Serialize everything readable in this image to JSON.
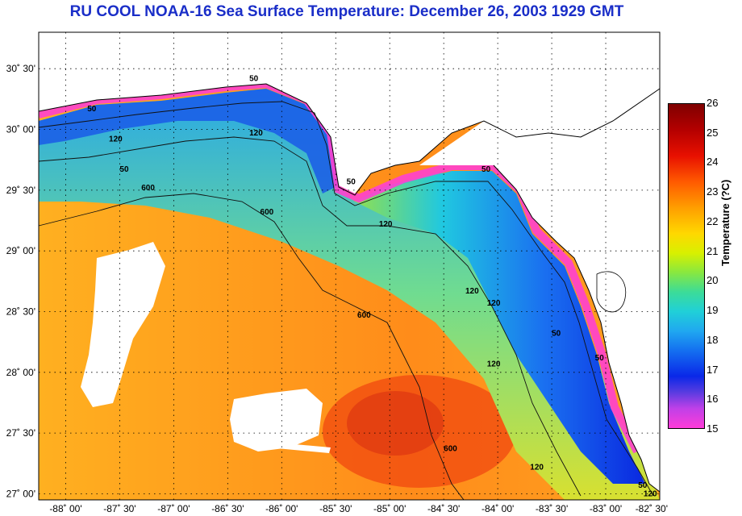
{
  "title": "RU COOL  NOAA-16  Sea Surface Temperature:  December 26, 2003 1929 GMT",
  "map": {
    "lon_range": [
      -88.25,
      -82.5
    ],
    "lat_range": [
      26.95,
      30.8
    ],
    "lat_ticks": [
      {
        "value": 30.5,
        "label": "30˚ 30'"
      },
      {
        "value": 30.0,
        "label": "30˚ 00'"
      },
      {
        "value": 29.5,
        "label": "29˚ 30'"
      },
      {
        "value": 29.0,
        "label": "29˚ 00'"
      },
      {
        "value": 28.5,
        "label": "28˚ 30'"
      },
      {
        "value": 28.0,
        "label": "28˚ 00'"
      },
      {
        "value": 27.5,
        "label": "27˚ 30'"
      },
      {
        "value": 27.0,
        "label": "27˚ 00'"
      }
    ],
    "lon_ticks": [
      {
        "value": -88.0,
        "label": "-88˚ 00'"
      },
      {
        "value": -87.5,
        "label": "-87˚ 30'"
      },
      {
        "value": -87.0,
        "label": "-87˚ 00'"
      },
      {
        "value": -86.5,
        "label": "-86˚ 30'"
      },
      {
        "value": -86.0,
        "label": "-86˚ 00'"
      },
      {
        "value": -85.5,
        "label": "-85˚ 30'"
      },
      {
        "value": -85.0,
        "label": "-85˚ 00'"
      },
      {
        "value": -84.5,
        "label": "-84˚ 30'"
      },
      {
        "value": -84.0,
        "label": "-84˚ 00'"
      },
      {
        "value": -83.5,
        "label": "-83˚ 30'"
      },
      {
        "value": -83.0,
        "label": "-83˚ 00'"
      },
      {
        "value": -82.5,
        "label": "-82˚ 30'"
      }
    ],
    "contour_labels": [
      {
        "text": "50",
        "lon": -87.8,
        "lat": 30.15
      },
      {
        "text": "120",
        "lon": -87.6,
        "lat": 29.9
      },
      {
        "text": "50",
        "lon": -87.5,
        "lat": 29.65
      },
      {
        "text": "600",
        "lon": -87.3,
        "lat": 29.5
      },
      {
        "text": "50",
        "lon": -86.3,
        "lat": 30.4
      },
      {
        "text": "120",
        "lon": -86.3,
        "lat": 29.95
      },
      {
        "text": "600",
        "lon": -86.2,
        "lat": 29.3
      },
      {
        "text": "50",
        "lon": -85.4,
        "lat": 29.55
      },
      {
        "text": "120",
        "lon": -85.1,
        "lat": 29.2
      },
      {
        "text": "600",
        "lon": -85.3,
        "lat": 28.45
      },
      {
        "text": "50",
        "lon": -84.15,
        "lat": 29.65
      },
      {
        "text": "120",
        "lon": -84.3,
        "lat": 28.65
      },
      {
        "text": "120",
        "lon": -84.1,
        "lat": 28.55
      },
      {
        "text": "50",
        "lon": -83.5,
        "lat": 28.3
      },
      {
        "text": "120",
        "lon": -84.1,
        "lat": 28.05
      },
      {
        "text": "50",
        "lon": -83.1,
        "lat": 28.1
      },
      {
        "text": "600",
        "lon": -84.5,
        "lat": 27.35
      },
      {
        "text": "120",
        "lon": -83.7,
        "lat": 27.2
      },
      {
        "text": "50",
        "lon": -82.7,
        "lat": 27.05
      },
      {
        "text": "120",
        "lon": -82.65,
        "lat": 26.98
      }
    ]
  },
  "colorbar": {
    "label": "Temperature (?C)",
    "min": 15,
    "max": 26,
    "ticks": [
      "26",
      "25",
      "24",
      "23",
      "22",
      "21",
      "20",
      "19",
      "18",
      "17",
      "16",
      "15"
    ]
  },
  "colors": {
    "title": "#1a2ec8",
    "land": "#ffffff",
    "warm": "#ff8c1a",
    "cool": "#1450e6",
    "coastal": "#ff40d0"
  }
}
